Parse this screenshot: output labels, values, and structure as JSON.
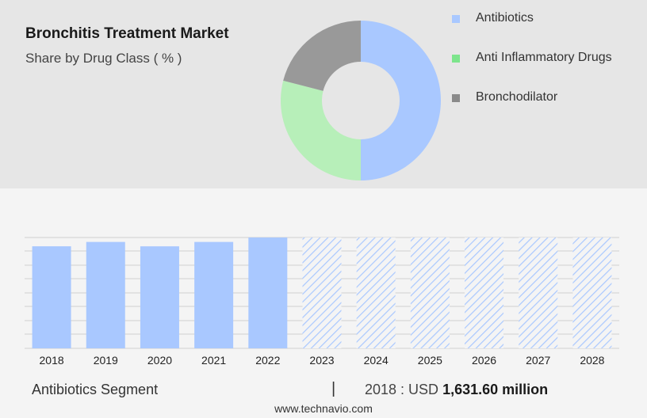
{
  "header": {
    "title": "Bronchitis Treatment Market",
    "subtitle": "Share by Drug Class ( % )"
  },
  "chart_data": [
    {
      "type": "pie",
      "title": "Bronchitis Treatment Market",
      "subtitle": "Share by Drug Class ( % )",
      "donut": true,
      "labels": [
        "Antibiotics",
        "Anti Inflammatory Drugs",
        "Bronchodilator"
      ],
      "values": [
        50,
        29,
        21
      ],
      "colors": [
        "#a9c8ff",
        "#b7efb9",
        "#999999"
      ],
      "legend_swatch_colors": [
        "#a9c8ff",
        "#7de58c",
        "#8a8a8a"
      ],
      "legend_position": "right"
    },
    {
      "type": "bar",
      "categories": [
        "2018",
        "2019",
        "2020",
        "2021",
        "2022",
        "2023",
        "2024",
        "2025",
        "2026",
        "2027",
        "2028"
      ],
      "values": [
        1631.6,
        1701,
        1631,
        1701,
        1772,
        1772,
        1772,
        1772,
        1772,
        1772,
        1772
      ],
      "forecast_from": "2023",
      "colors": {
        "actual": "#a9c8ff",
        "forecast_hatch": "#a9c8ff"
      },
      "grid": true,
      "ylim": [
        0,
        1772
      ]
    }
  ],
  "footer": {
    "segment": "Antibiotics Segment",
    "separator": "|",
    "year_prefix": "2018 : USD",
    "value_text": "1,631.60 million"
  },
  "source": "www.technavio.com"
}
